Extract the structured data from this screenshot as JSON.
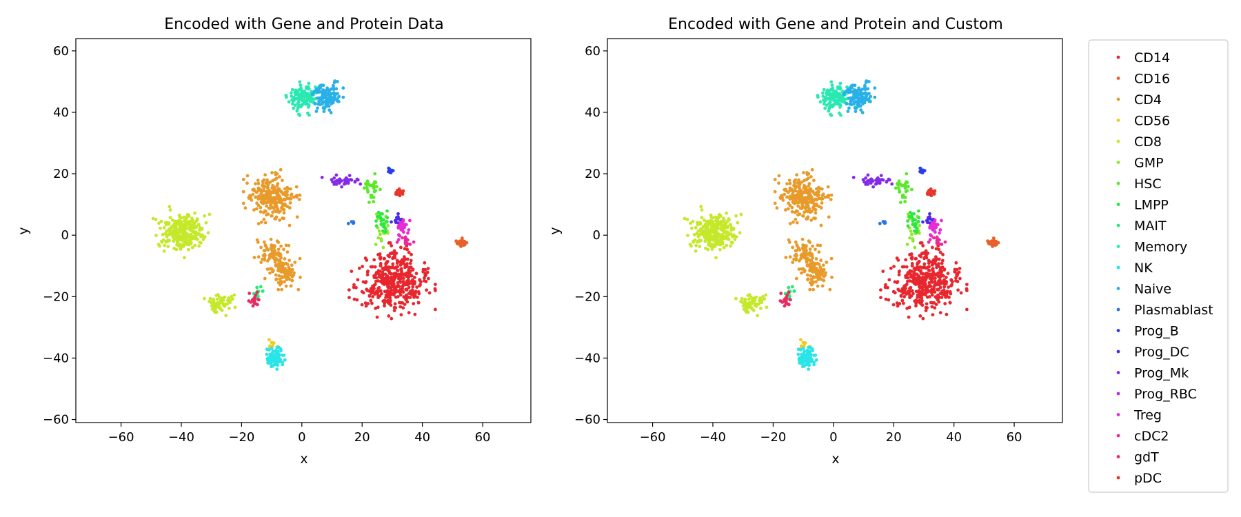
{
  "chart_data": [
    {
      "type": "scatter",
      "title": "Encoded with Gene and Protein Data",
      "xlabel": "x",
      "ylabel": "y",
      "xlim": [
        -75,
        76
      ],
      "ylim": [
        -61,
        64
      ],
      "xticks": [
        -60,
        -40,
        -20,
        0,
        20,
        40,
        60
      ],
      "yticks": [
        -60,
        -40,
        -20,
        0,
        20,
        40,
        60
      ],
      "grid": false,
      "clusters": [
        {
          "series": "CD14",
          "center": [
            30,
            -15
          ],
          "spread": [
            5.5,
            4.8
          ],
          "count": 420
        },
        {
          "series": "CD16",
          "center": [
            53,
            -2.5
          ],
          "spread": [
            0.9,
            0.6
          ],
          "count": 30
        },
        {
          "series": "CD4",
          "center": [
            -10,
            12
          ],
          "spread": [
            3.6,
            3.6
          ],
          "count": 260
        },
        {
          "series": "CD4",
          "center": [
            -9,
            -6
          ],
          "spread": [
            2.6,
            2.4
          ],
          "count": 80
        },
        {
          "series": "CD4",
          "center": [
            -6,
            -12
          ],
          "spread": [
            2.4,
            2.2
          ],
          "count": 90
        },
        {
          "series": "CD8",
          "center": [
            -40,
            1
          ],
          "spread": [
            3.6,
            3.2
          ],
          "count": 270
        },
        {
          "series": "CD8",
          "center": [
            -27,
            -22
          ],
          "spread": [
            2.5,
            1.6
          ],
          "count": 60
        },
        {
          "series": "CD56",
          "center": [
            -10,
            -35
          ],
          "spread": [
            1.2,
            1.0
          ],
          "count": 8
        },
        {
          "series": "GMP",
          "center": [
            27,
            2
          ],
          "spread": [
            1.6,
            3.0
          ],
          "count": 25
        },
        {
          "series": "HSC",
          "center": [
            23,
            15
          ],
          "spread": [
            1.2,
            2.2
          ],
          "count": 30
        },
        {
          "series": "LMPP",
          "center": [
            27,
            5
          ],
          "spread": [
            1.2,
            1.5
          ],
          "count": 25
        },
        {
          "series": "MAIT",
          "center": [
            -15,
            -19
          ],
          "spread": [
            1.0,
            1.0
          ],
          "count": 15
        },
        {
          "series": "Memory",
          "center": [
            1,
            45
          ],
          "spread": [
            2.4,
            2.3
          ],
          "count": 120
        },
        {
          "series": "NK",
          "center": [
            -9,
            -40
          ],
          "spread": [
            1.3,
            1.4
          ],
          "count": 110
        },
        {
          "series": "Naive",
          "center": [
            8,
            45
          ],
          "spread": [
            2.2,
            2.0
          ],
          "count": 130
        },
        {
          "series": "Plasmablast",
          "center": [
            16.5,
            4.3
          ],
          "spread": [
            0.6,
            0.3
          ],
          "count": 6
        },
        {
          "series": "Prog_B",
          "center": [
            29.5,
            21.5
          ],
          "spread": [
            0.6,
            0.8
          ],
          "count": 10
        },
        {
          "series": "Prog_DC",
          "center": [
            32,
            5
          ],
          "spread": [
            1.0,
            0.8
          ],
          "count": 15
        },
        {
          "series": "Prog_Mk",
          "center": [
            14,
            17.5
          ],
          "spread": [
            2.8,
            0.8
          ],
          "count": 40
        },
        {
          "series": "Treg",
          "center": [
            34,
            2
          ],
          "spread": [
            1.3,
            1.8
          ],
          "count": 25
        },
        {
          "series": "cDC2",
          "center": [
            34,
            -2
          ],
          "spread": [
            1.2,
            1.2
          ],
          "count": 12
        },
        {
          "series": "gdT",
          "center": [
            -16,
            -21
          ],
          "spread": [
            1.0,
            1.0
          ],
          "count": 20
        },
        {
          "series": "pDC",
          "center": [
            32,
            14
          ],
          "spread": [
            0.8,
            0.6
          ],
          "count": 18
        }
      ]
    },
    {
      "type": "scatter",
      "title": "Encoded with Gene and Protein and Custom",
      "xlabel": "x",
      "ylabel": "y",
      "xlim": [
        -75,
        76
      ],
      "ylim": [
        -61,
        64
      ],
      "xticks": [
        -60,
        -40,
        -20,
        0,
        20,
        40,
        60
      ],
      "yticks": [
        -60,
        -40,
        -20,
        0,
        20,
        40,
        60
      ],
      "grid": false,
      "clusters": [
        {
          "series": "CD14",
          "center": [
            30,
            -15
          ],
          "spread": [
            5.5,
            4.8
          ],
          "count": 420
        },
        {
          "series": "CD16",
          "center": [
            53,
            -2.5
          ],
          "spread": [
            0.9,
            0.6
          ],
          "count": 30
        },
        {
          "series": "CD4",
          "center": [
            -10,
            12
          ],
          "spread": [
            3.6,
            3.6
          ],
          "count": 260
        },
        {
          "series": "CD4",
          "center": [
            -9,
            -6
          ],
          "spread": [
            2.6,
            2.4
          ],
          "count": 80
        },
        {
          "series": "CD4",
          "center": [
            -6,
            -12
          ],
          "spread": [
            2.4,
            2.2
          ],
          "count": 90
        },
        {
          "series": "CD8",
          "center": [
            -40,
            1
          ],
          "spread": [
            3.6,
            3.2
          ],
          "count": 270
        },
        {
          "series": "CD8",
          "center": [
            -27,
            -22
          ],
          "spread": [
            2.5,
            1.6
          ],
          "count": 60
        },
        {
          "series": "CD56",
          "center": [
            -10,
            -35
          ],
          "spread": [
            1.2,
            1.0
          ],
          "count": 8
        },
        {
          "series": "GMP",
          "center": [
            27,
            2
          ],
          "spread": [
            1.6,
            3.0
          ],
          "count": 25
        },
        {
          "series": "HSC",
          "center": [
            23,
            15
          ],
          "spread": [
            1.2,
            2.2
          ],
          "count": 30
        },
        {
          "series": "LMPP",
          "center": [
            27,
            5
          ],
          "spread": [
            1.2,
            1.5
          ],
          "count": 25
        },
        {
          "series": "MAIT",
          "center": [
            -15,
            -19
          ],
          "spread": [
            1.0,
            1.0
          ],
          "count": 15
        },
        {
          "series": "Memory",
          "center": [
            1,
            45
          ],
          "spread": [
            2.4,
            2.3
          ],
          "count": 120
        },
        {
          "series": "NK",
          "center": [
            -9,
            -40
          ],
          "spread": [
            1.3,
            1.4
          ],
          "count": 110
        },
        {
          "series": "Naive",
          "center": [
            8,
            45
          ],
          "spread": [
            2.2,
            2.0
          ],
          "count": 130
        },
        {
          "series": "Plasmablast",
          "center": [
            16.5,
            4.3
          ],
          "spread": [
            0.6,
            0.3
          ],
          "count": 6
        },
        {
          "series": "Prog_B",
          "center": [
            29.5,
            21.5
          ],
          "spread": [
            0.6,
            0.8
          ],
          "count": 10
        },
        {
          "series": "Prog_DC",
          "center": [
            32,
            5
          ],
          "spread": [
            1.0,
            0.8
          ],
          "count": 15
        },
        {
          "series": "Prog_Mk",
          "center": [
            14,
            17.5
          ],
          "spread": [
            2.8,
            0.8
          ],
          "count": 40
        },
        {
          "series": "Treg",
          "center": [
            34,
            2
          ],
          "spread": [
            1.3,
            1.8
          ],
          "count": 25
        },
        {
          "series": "cDC2",
          "center": [
            34,
            -2
          ],
          "spread": [
            1.2,
            1.2
          ],
          "count": 12
        },
        {
          "series": "gdT",
          "center": [
            -16,
            -21
          ],
          "spread": [
            1.0,
            1.0
          ],
          "count": 20
        },
        {
          "series": "pDC",
          "center": [
            32,
            14
          ],
          "spread": [
            0.8,
            0.6
          ],
          "count": 18
        }
      ]
    }
  ],
  "legend": {
    "placement": "outside-right",
    "entries": [
      {
        "name": "CD14",
        "color": "#e8262e"
      },
      {
        "name": "CD16",
        "color": "#e8612a"
      },
      {
        "name": "CD4",
        "color": "#e89a2b"
      },
      {
        "name": "CD56",
        "color": "#e8cf26"
      },
      {
        "name": "CD8",
        "color": "#c5e82a"
      },
      {
        "name": "GMP",
        "color": "#8fe82a"
      },
      {
        "name": "HSC",
        "color": "#5ae82a"
      },
      {
        "name": "LMPP",
        "color": "#2ae83d"
      },
      {
        "name": "MAIT",
        "color": "#2ae877"
      },
      {
        "name": "Memory",
        "color": "#2ae8b2"
      },
      {
        "name": "NK",
        "color": "#2ae5e8"
      },
      {
        "name": "Naive",
        "color": "#2ab0e8"
      },
      {
        "name": "Plasmablast",
        "color": "#2a73e8"
      },
      {
        "name": "Prog_B",
        "color": "#2a3ee8"
      },
      {
        "name": "Prog_DC",
        "color": "#4b2ae8"
      },
      {
        "name": "Prog_Mk",
        "color": "#852ae8"
      },
      {
        "name": "Prog_RBC",
        "color": "#bb2ae8"
      },
      {
        "name": "Treg",
        "color": "#e82ad6"
      },
      {
        "name": "cDC2",
        "color": "#e82a9c"
      },
      {
        "name": "gdT",
        "color": "#e82a61"
      },
      {
        "name": "pDC",
        "color": "#e8352a"
      }
    ]
  }
}
